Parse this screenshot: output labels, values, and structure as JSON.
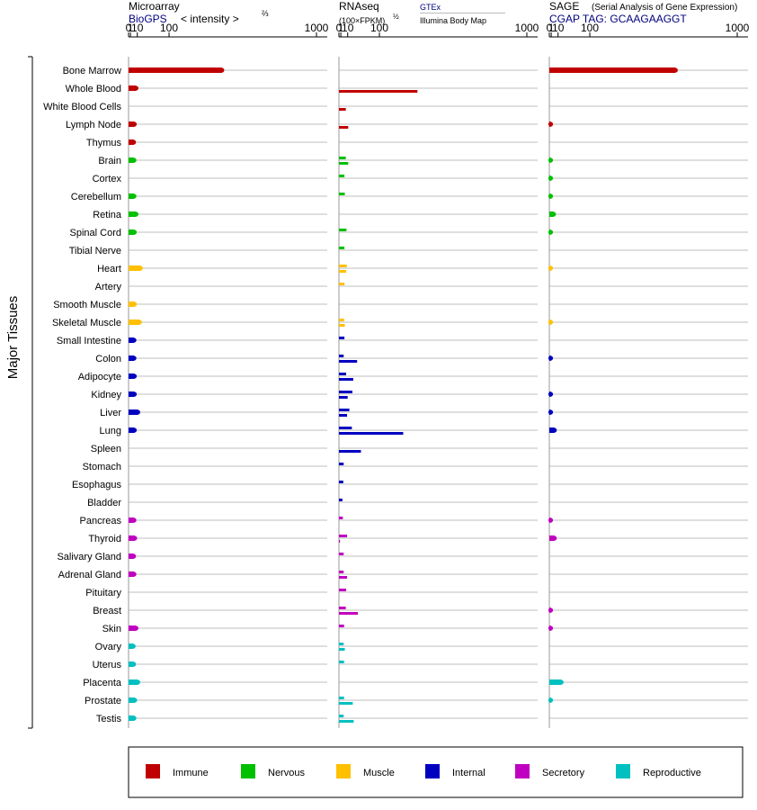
{
  "headers": {
    "microarray": {
      "title": "Microarray",
      "source": "BioGPS",
      "unit": "< intensity >",
      "unit_exp": "⅔"
    },
    "rnaseq": {
      "title": "RNAseq",
      "unit": "(100×FPKM)",
      "unit_exp": "½",
      "source1": "GTEx",
      "source2": "Illumina Body Map"
    },
    "sage": {
      "title": "SAGE",
      "subtitle": "(Serial Analysis of Gene Expression)",
      "tag": "CGAP TAG: GCAAGAAGGT"
    }
  },
  "y_axis_label": "Major Tissues",
  "colors": {
    "Immune": "#c00000",
    "Nervous": "#00c000",
    "Muscle": "#ffc000",
    "Internal": "#0000c0",
    "Secretory": "#c000c0",
    "Reproductive": "#00c0c0"
  },
  "legend": [
    "Immune",
    "Nervous",
    "Muscle",
    "Internal",
    "Secretory",
    "Reproductive"
  ],
  "chart_data": {
    "type": "bar",
    "x_ticks": [
      "0",
      "1",
      "10",
      "100",
      "1000"
    ],
    "x_tick_values": [
      0,
      1,
      10,
      100,
      1000
    ],
    "xlim": [
      0,
      1000
    ],
    "x_scale": "power",
    "grid": true,
    "legend_position": "bottom",
    "tissues": [
      {
        "name": "Bone Marrow",
        "group": "Immune",
        "microarray": 350,
        "rnaseq": [
          null,
          null
        ],
        "sage": 550
      },
      {
        "name": "Whole Blood",
        "group": "Immune",
        "microarray": 8,
        "rnaseq": [
          null,
          270
        ],
        "sage": null
      },
      {
        "name": "White Blood Cells",
        "group": "Immune",
        "microarray": null,
        "rnaseq": [
          null,
          7
        ],
        "sage": null
      },
      {
        "name": "Lymph Node",
        "group": "Immune",
        "microarray": 5.5,
        "rnaseq": [
          null,
          11
        ],
        "sage": 0.01
      },
      {
        "name": "Thymus",
        "group": "Immune",
        "microarray": 4.5,
        "rnaseq": [
          null,
          null
        ],
        "sage": null
      },
      {
        "name": "Brain",
        "group": "Nervous",
        "microarray": 5,
        "rnaseq": [
          7,
          11
        ],
        "sage": 0.01
      },
      {
        "name": "Cortex",
        "group": "Nervous",
        "microarray": null,
        "rnaseq": [
          5,
          null
        ],
        "sage": 0.01
      },
      {
        "name": "Cerebellum",
        "group": "Nervous",
        "microarray": 5,
        "rnaseq": [
          5.5,
          null
        ],
        "sage": 0.01
      },
      {
        "name": "Retina",
        "group": "Nervous",
        "microarray": 8,
        "rnaseq": [
          null,
          null
        ],
        "sage": 3.5
      },
      {
        "name": "Spinal Cord",
        "group": "Nervous",
        "microarray": 5.5,
        "rnaseq": [
          8,
          null
        ],
        "sage": 0.01
      },
      {
        "name": "Tibial Nerve",
        "group": "Nervous",
        "microarray": null,
        "rnaseq": [
          5,
          null
        ],
        "sage": null
      },
      {
        "name": "Heart",
        "group": "Muscle",
        "microarray": 16,
        "rnaseq": [
          8.5,
          7.5
        ],
        "sage": 0.01
      },
      {
        "name": "Artery",
        "group": "Muscle",
        "microarray": null,
        "rnaseq": [
          5,
          null
        ],
        "sage": null
      },
      {
        "name": "Smooth Muscle",
        "group": "Muscle",
        "microarray": 5.5,
        "rnaseq": [
          null,
          null
        ],
        "sage": null
      },
      {
        "name": "Skeletal Muscle",
        "group": "Muscle",
        "microarray": 14,
        "rnaseq": [
          4.5,
          5.5
        ],
        "sage": 0.01
      },
      {
        "name": "Small Intestine",
        "group": "Internal",
        "microarray": 5,
        "rnaseq": [
          5,
          null
        ],
        "sage": null
      },
      {
        "name": "Colon",
        "group": "Internal",
        "microarray": 5,
        "rnaseq": [
          4,
          30
        ],
        "sage": 0.01
      },
      {
        "name": "Adipocyte",
        "group": "Internal",
        "microarray": 5.5,
        "rnaseq": [
          7.5,
          21
        ],
        "sage": null
      },
      {
        "name": "Kidney",
        "group": "Internal",
        "microarray": 5.5,
        "rnaseq": [
          19,
          10
        ],
        "sage": 0.01
      },
      {
        "name": "Liver",
        "group": "Internal",
        "microarray": 11,
        "rnaseq": [
          13,
          9
        ],
        "sage": 0.01
      },
      {
        "name": "Lung",
        "group": "Internal",
        "microarray": 5.5,
        "rnaseq": [
          18,
          200
        ],
        "sage": 4.5
      },
      {
        "name": "Spleen",
        "group": "Internal",
        "microarray": null,
        "rnaseq": [
          null,
          40
        ],
        "sage": null
      },
      {
        "name": "Stomach",
        "group": "Internal",
        "microarray": null,
        "rnaseq": [
          4,
          null
        ],
        "sage": null
      },
      {
        "name": "Esophagus",
        "group": "Internal",
        "microarray": null,
        "rnaseq": [
          3.5,
          null
        ],
        "sage": null
      },
      {
        "name": "Bladder",
        "group": "Internal",
        "microarray": null,
        "rnaseq": [
          2.5,
          null
        ],
        "sage": null
      },
      {
        "name": "Pancreas",
        "group": "Secretory",
        "microarray": 5,
        "rnaseq": [
          3,
          null
        ],
        "sage": 0.01
      },
      {
        "name": "Thyroid",
        "group": "Secretory",
        "microarray": 6,
        "rnaseq": [
          9,
          0.01
        ],
        "sage": 4.5
      },
      {
        "name": "Salivary Gland",
        "group": "Secretory",
        "microarray": 4.5,
        "rnaseq": [
          4,
          null
        ],
        "sage": null
      },
      {
        "name": "Adrenal Gland",
        "group": "Secretory",
        "microarray": 5,
        "rnaseq": [
          4,
          9
        ],
        "sage": null
      },
      {
        "name": "Pituitary",
        "group": "Secretory",
        "microarray": null,
        "rnaseq": [
          7.5,
          null
        ],
        "sage": null
      },
      {
        "name": "Breast",
        "group": "Secretory",
        "microarray": null,
        "rnaseq": [
          7,
          32
        ],
        "sage": 0.01
      },
      {
        "name": "Skin",
        "group": "Secretory",
        "microarray": 8,
        "rnaseq": [
          4.5,
          null
        ],
        "sage": 0.01
      },
      {
        "name": "Ovary",
        "group": "Reproductive",
        "microarray": 4,
        "rnaseq": [
          4,
          5.5
        ],
        "sage": null
      },
      {
        "name": "Uterus",
        "group": "Reproductive",
        "microarray": 4.5,
        "rnaseq": [
          4.5,
          null
        ],
        "sage": null
      },
      {
        "name": "Placenta",
        "group": "Reproductive",
        "microarray": 11,
        "rnaseq": [
          null,
          null
        ],
        "sage": 16
      },
      {
        "name": "Prostate",
        "group": "Reproductive",
        "microarray": 6,
        "rnaseq": [
          4.5,
          20
        ],
        "sage": 0.01
      },
      {
        "name": "Testis",
        "group": "Reproductive",
        "microarray": 5,
        "rnaseq": [
          4,
          22
        ],
        "sage": null
      }
    ]
  }
}
